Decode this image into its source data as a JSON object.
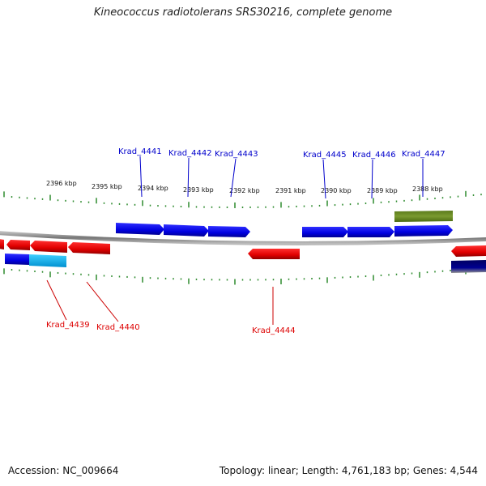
{
  "title": "Kineococcus radiotolerans SRS30216, complete genome",
  "footer": {
    "accession": "Accession: NC_009664",
    "summary": "Topology: linear; Length: 4,761,183 bp; Genes: 4,544"
  },
  "colors": {
    "forward_gene": "#0000ee",
    "reverse_gene": "#ee0000",
    "reverse_gene_alt": "#00aaff",
    "rna_gene": "#6b8e23",
    "tick": "#2e8b2e",
    "backbone": "#888888",
    "dark_gene": "#000080"
  },
  "scale_labels": [
    "2396 kbp",
    "2395 kbp",
    "2394 kbp",
    "2393 kbp",
    "2392 kbp",
    "2391 kbp",
    "2390 kbp",
    "2389 kbp",
    "2388 kbp"
  ],
  "upper_genes": [
    "Krad_4441",
    "Krad_4442",
    "Krad_4443",
    "Krad_4445",
    "Krad_4446",
    "Krad_4447"
  ],
  "lower_genes": [
    "Krad_4439",
    "Krad_4440",
    "Krad_4444"
  ]
}
